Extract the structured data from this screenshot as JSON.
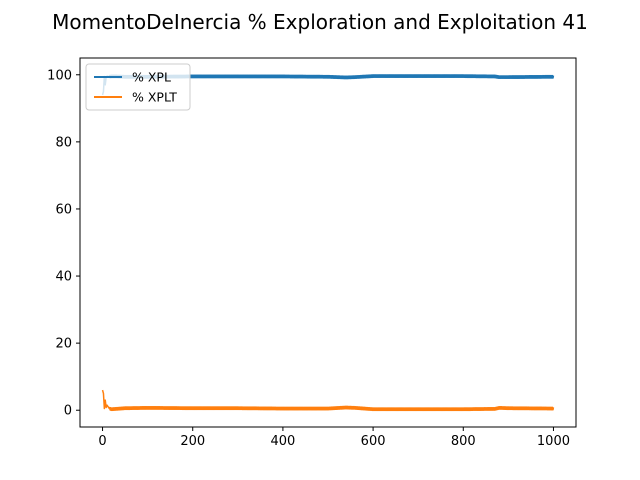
{
  "chart_data": {
    "type": "line",
    "title": "MomentoDeInercia % Exploration and Exploitation 41",
    "xlabel": "",
    "ylabel": "",
    "xlim": [
      -50,
      1050
    ],
    "ylim": [
      -5,
      105
    ],
    "xticks": [
      0,
      200,
      400,
      600,
      800,
      1000
    ],
    "yticks": [
      0,
      20,
      40,
      60,
      80,
      100
    ],
    "legend_position": "top-left",
    "grid": false,
    "series": [
      {
        "name": "% XPL",
        "color": "#1f77b4",
        "x": [
          0,
          2,
          4,
          6,
          8,
          10,
          15,
          20,
          30,
          50,
          100,
          200,
          300,
          400,
          500,
          540,
          560,
          600,
          700,
          800,
          870,
          880,
          900,
          1000
        ],
        "values": [
          94,
          95,
          99.5,
          97,
          99.2,
          99.6,
          99.4,
          99.5,
          99.5,
          99.4,
          99.4,
          99.5,
          99.5,
          99.5,
          99.4,
          99.2,
          99.3,
          99.6,
          99.6,
          99.6,
          99.5,
          99.3,
          99.3,
          99.4
        ],
        "noise": 0.35
      },
      {
        "name": "% XPLT",
        "color": "#ff7f0e",
        "x": [
          0,
          2,
          4,
          6,
          8,
          10,
          15,
          20,
          30,
          50,
          100,
          200,
          300,
          400,
          500,
          540,
          560,
          600,
          700,
          800,
          870,
          880,
          900,
          1000
        ],
        "values": [
          6,
          5,
          0.5,
          3,
          0.8,
          1.5,
          0.5,
          0.3,
          0.4,
          0.6,
          0.7,
          0.6,
          0.6,
          0.5,
          0.5,
          0.8,
          0.7,
          0.3,
          0.3,
          0.3,
          0.4,
          0.7,
          0.6,
          0.5
        ],
        "noise": 0.35
      }
    ]
  }
}
